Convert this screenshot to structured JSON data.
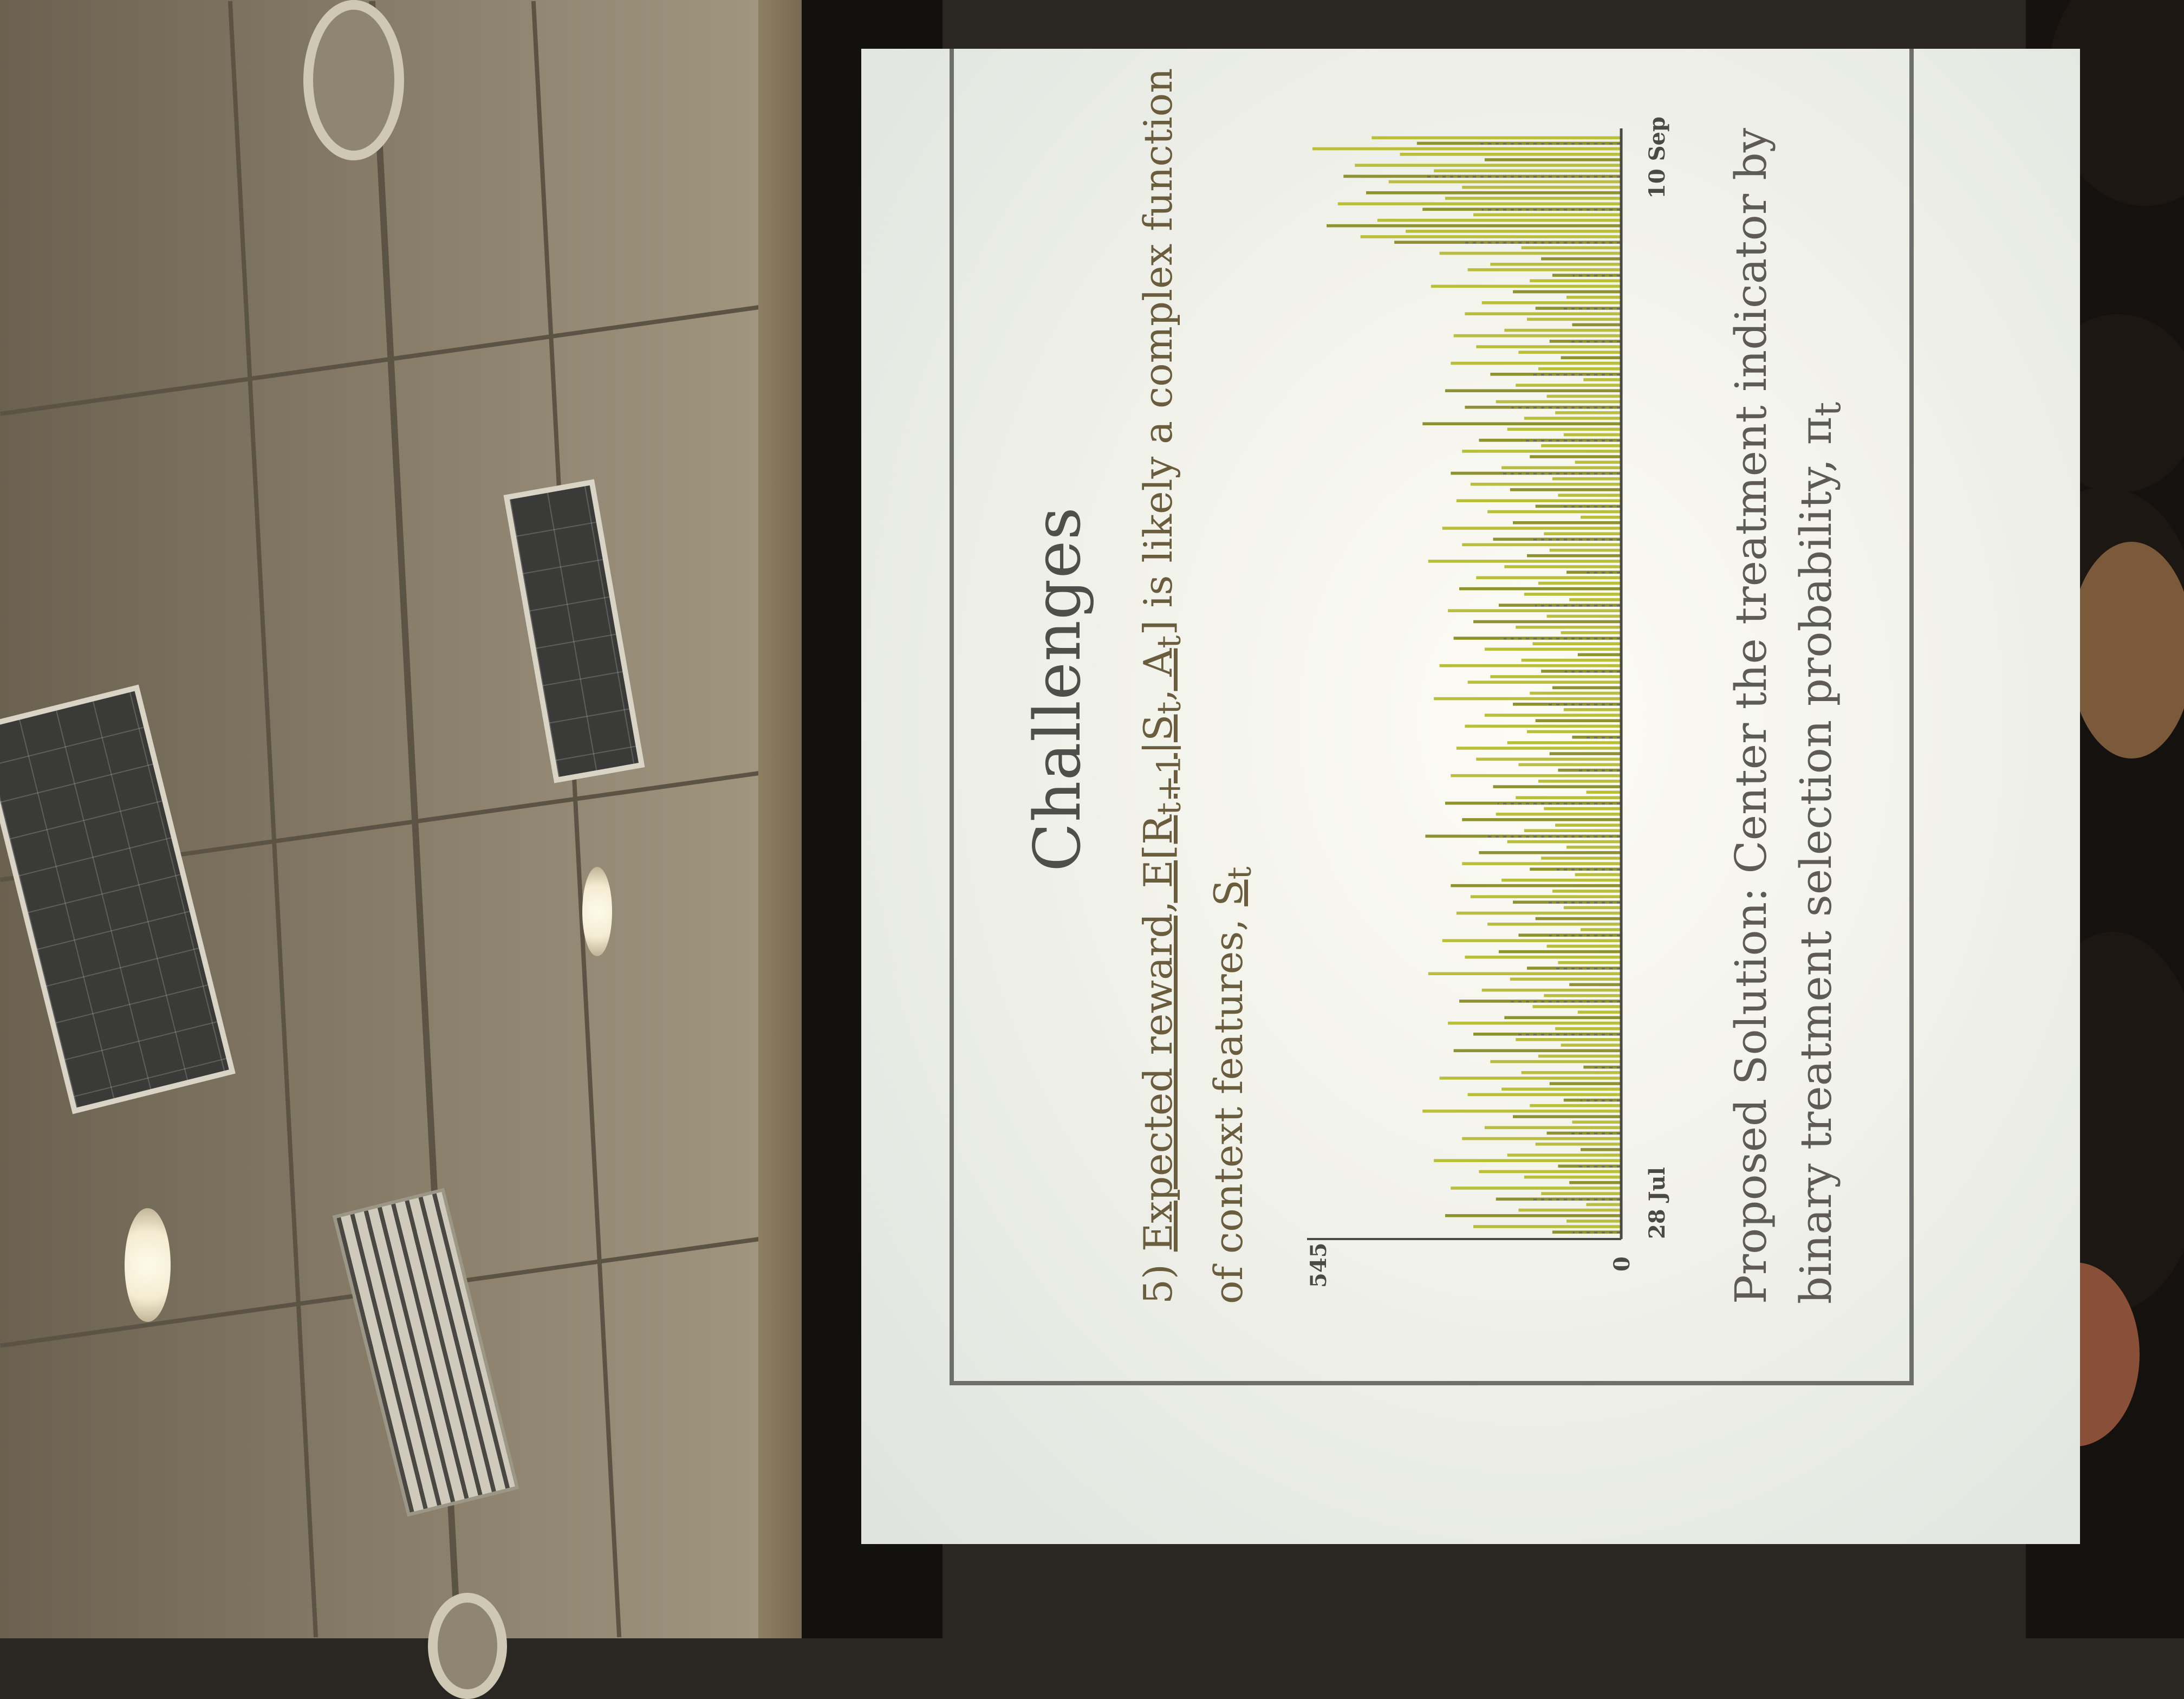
{
  "slide": {
    "title": "Challenges",
    "bullet_prefix": "5) ",
    "bullet_underlined_1": "Expected reward, E[R",
    "bullet_sub_1": "t+1",
    "bullet_underlined_2": "|S",
    "bullet_sub_2": "t",
    "bullet_underlined_3": ", A",
    "bullet_sub_3": "t",
    "bullet_underlined_4": "]",
    "bullet_mid": " is likely a complex function of context features, ",
    "bullet_tail": "S",
    "bullet_sub_tail": "t",
    "solution_line_1": "Proposed Solution: Center the treatment indicator by",
    "solution_line_2": "binary treatment selection probability, π",
    "solution_sub": "t"
  },
  "chart_data": {
    "type": "bar",
    "title": "",
    "xlabel": "",
    "ylabel": "",
    "ylim": [
      0,
      545
    ],
    "y_tick_labels": [
      "545",
      "0"
    ],
    "x_tick_labels": [
      "28 Jul",
      "10 Sep"
    ],
    "colors": {
      "bar": "#b9bf3c",
      "bar_dark": "#8e9230",
      "dashed": "#6a6a66"
    },
    "values": [
      120,
      260,
      95,
      310,
      180,
      60,
      220,
      140,
      300,
      90,
      170,
      250,
      110,
      330,
      200,
      70,
      150,
      280,
      130,
      240,
      85,
      190,
      350,
      160,
      100,
      270,
      210,
      125,
      320,
      175,
      65,
      230,
      145,
      295,
      105,
      185,
      260,
      115,
      305,
      205,
      75,
      155,
      285,
      135,
      245,
      90,
      195,
      340,
      165,
      110,
      275,
      215,
      130,
      315,
      180,
      70,
      235,
      150,
      290,
      100,
      190,
      265,
      120,
      300,
      210,
      80,
      160,
      280,
      140,
      250,
      95,
      200,
      345,
      170,
      115,
      280,
      220,
      135,
      310,
      185,
      60,
      225,
      145,
      300,
      110,
      180,
      255,
      125,
      290,
      200,
      85,
      165,
      275,
      150,
      240,
      100,
      190,
      330,
      160,
      120,
      270,
      230,
      140,
      320,
      175,
      75,
      240,
      155,
      295,
      105,
      185,
      260,
      130,
      305,
      215,
      90,
      170,
      285,
      145,
      255,
      95,
      205,
      340,
      165,
      125,
      280,
      225,
      135,
      315,
      190,
      70,
      235,
      150,
      290,
      110,
      195,
      265,
      120,
      300,
      210,
      80,
      160,
      280,
      140,
      250,
      100,
      200,
      350,
      170,
      115,
      275,
      220,
      130,
      310,
      185,
      65,
      230,
      145,
      300,
      105,
      180,
      255,
      125,
      295,
      205,
      85,
      165,
      275,
      150,
      245,
      95,
      190,
      335,
      160,
      120,
      270,
      230,
      140,
      320,
      175,
      400,
      460,
      380,
      520,
      430,
      260,
      350,
      500,
      310,
      450,
      280,
      410,
      490,
      330,
      470,
      240,
      390,
      545,
      360,
      440
    ]
  }
}
